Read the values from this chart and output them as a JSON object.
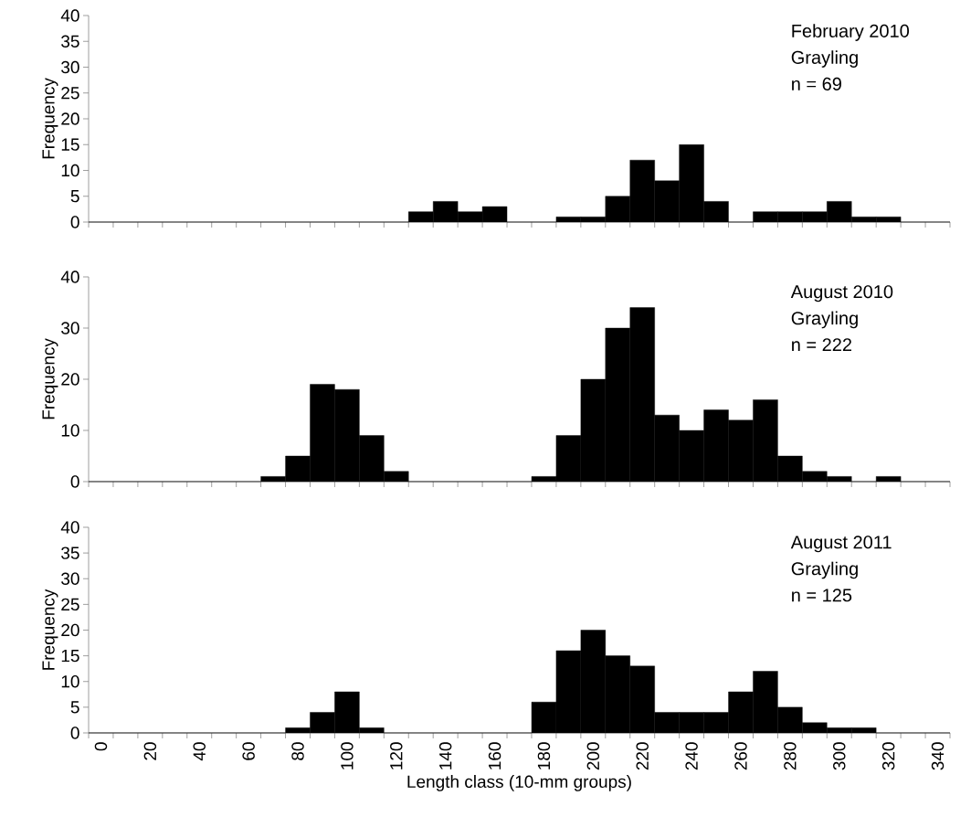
{
  "chart_data": [
    {
      "type": "bar",
      "ylabel": "Frequency",
      "annotations": [
        "February 2010",
        "Grayling",
        "n = 69"
      ],
      "tick_labels": "y",
      "color": "#000000",
      "categories": [
        "0",
        null,
        "20",
        null,
        "40",
        null,
        "60",
        null,
        "80",
        null,
        "100",
        null,
        "120",
        null,
        "140",
        null,
        "160",
        null,
        "180",
        null,
        "200",
        null,
        "220",
        null,
        "240",
        null,
        "260",
        null,
        "280",
        null,
        "300",
        null,
        "320",
        null,
        "340"
      ],
      "values": [
        0,
        0,
        0,
        0,
        0,
        0,
        0,
        0,
        0,
        0,
        0,
        0,
        0,
        2,
        4,
        2,
        3,
        0,
        0,
        1,
        1,
        5,
        12,
        8,
        15,
        4,
        0,
        2,
        2,
        2,
        4,
        1,
        1,
        0,
        0
      ],
      "ylim": [
        0,
        40
      ],
      "yticks": [
        0,
        5,
        10,
        15,
        20,
        25,
        30,
        35,
        40
      ]
    },
    {
      "type": "bar",
      "ylabel": "Frequency",
      "annotations": [
        "August 2010",
        "Grayling",
        "n = 222"
      ],
      "tick_labels": "y",
      "color": "#000000",
      "categories": [
        "0",
        null,
        "20",
        null,
        "40",
        null,
        "60",
        null,
        "80",
        null,
        "100",
        null,
        "120",
        null,
        "140",
        null,
        "160",
        null,
        "180",
        null,
        "200",
        null,
        "220",
        null,
        "240",
        null,
        "260",
        null,
        "280",
        null,
        "300",
        null,
        "320",
        null,
        "340"
      ],
      "values": [
        0,
        0,
        0,
        0,
        0,
        0,
        0,
        1,
        5,
        19,
        18,
        9,
        2,
        0,
        0,
        0,
        0,
        0,
        1,
        9,
        20,
        30,
        34,
        13,
        10,
        14,
        12,
        16,
        5,
        2,
        1,
        0,
        1,
        0,
        0
      ],
      "ylim": [
        0,
        40
      ],
      "yticks": [
        0,
        10,
        20,
        30,
        40
      ]
    },
    {
      "type": "bar",
      "ylabel": "Frequency",
      "xlabel": "Length class (10-mm  groups)",
      "annotations": [
        "August 2011",
        "Grayling",
        "n = 125"
      ],
      "color": "#000000",
      "categories": [
        "0",
        null,
        "20",
        null,
        "40",
        null,
        "60",
        null,
        "80",
        null,
        "100",
        null,
        "120",
        null,
        "140",
        null,
        "160",
        null,
        "180",
        null,
        "200",
        null,
        "220",
        null,
        "240",
        null,
        "260",
        null,
        "280",
        null,
        "300",
        null,
        "320",
        null,
        "340"
      ],
      "values": [
        0,
        0,
        0,
        0,
        0,
        0,
        0,
        0,
        1,
        4,
        8,
        1,
        0,
        0,
        0,
        0,
        0,
        0,
        6,
        16,
        20,
        15,
        13,
        4,
        4,
        4,
        8,
        12,
        5,
        2,
        1,
        1,
        0,
        0,
        0
      ],
      "ylim": [
        0,
        40
      ],
      "yticks": [
        0,
        5,
        10,
        15,
        20,
        25,
        30,
        35,
        40
      ]
    }
  ]
}
